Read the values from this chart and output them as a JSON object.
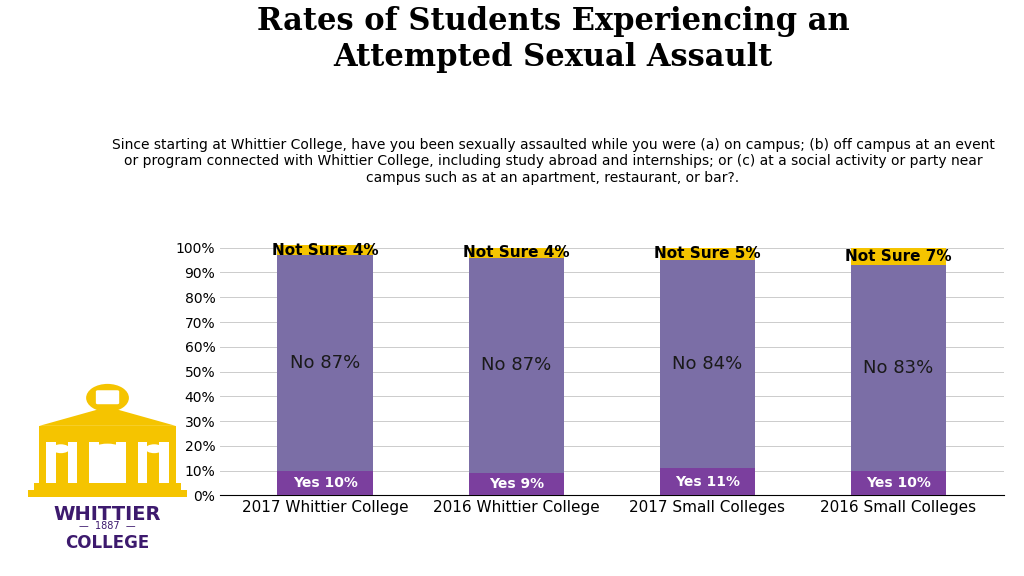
{
  "title": "Rates of Students Experiencing an\nAttempted Sexual Assault",
  "subtitle": "Since starting at Whittier College, have you been sexually assaulted while you were (a) on campus; (b) off campus at an event\nor program connected with Whittier College, including study abroad and internships; or (c) at a social activity or party near\ncampus such as at an apartment, restaurant, or bar?.",
  "categories": [
    "2017 Whittier College",
    "2016 Whittier College",
    "2017 Small Colleges",
    "2016 Small Colleges"
  ],
  "yes_values": [
    10,
    9,
    11,
    10
  ],
  "no_values": [
    87,
    87,
    84,
    83
  ],
  "not_sure_values": [
    4,
    4,
    5,
    7
  ],
  "yes_labels": [
    "Yes 10%",
    "Yes 9%",
    "Yes 11%",
    "Yes 10%"
  ],
  "no_labels": [
    "No 87%",
    "No 87%",
    "No 84%",
    "No 83%"
  ],
  "not_sure_labels": [
    "Not Sure 4%",
    "Not Sure 4%",
    "Not Sure 5%",
    "Not Sure 7%"
  ],
  "yes_color": "#7b3f9e",
  "no_color": "#7b6ea6",
  "not_sure_color": "#f5c400",
  "bar_width": 0.5,
  "ylim": [
    0,
    107
  ],
  "yticks": [
    0,
    10,
    20,
    30,
    40,
    50,
    60,
    70,
    80,
    90,
    100
  ],
  "ytick_labels": [
    "0%",
    "10%",
    "20%",
    "30%",
    "40%",
    "50%",
    "60%",
    "70%",
    "80%",
    "90%",
    "100%"
  ],
  "title_fontsize": 22,
  "subtitle_fontsize": 10,
  "label_fontsize_yes": 10,
  "label_fontsize_no": 13,
  "label_fontsize_ns": 11,
  "tick_fontsize": 10,
  "xtick_fontsize": 11,
  "background_color": "#ffffff",
  "logo_color": "#f5c400",
  "logo_text_color": "#3d1a6e",
  "whittier_text": "WHITTIER",
  "college_text": "COLLEGE",
  "year_text": "1887"
}
